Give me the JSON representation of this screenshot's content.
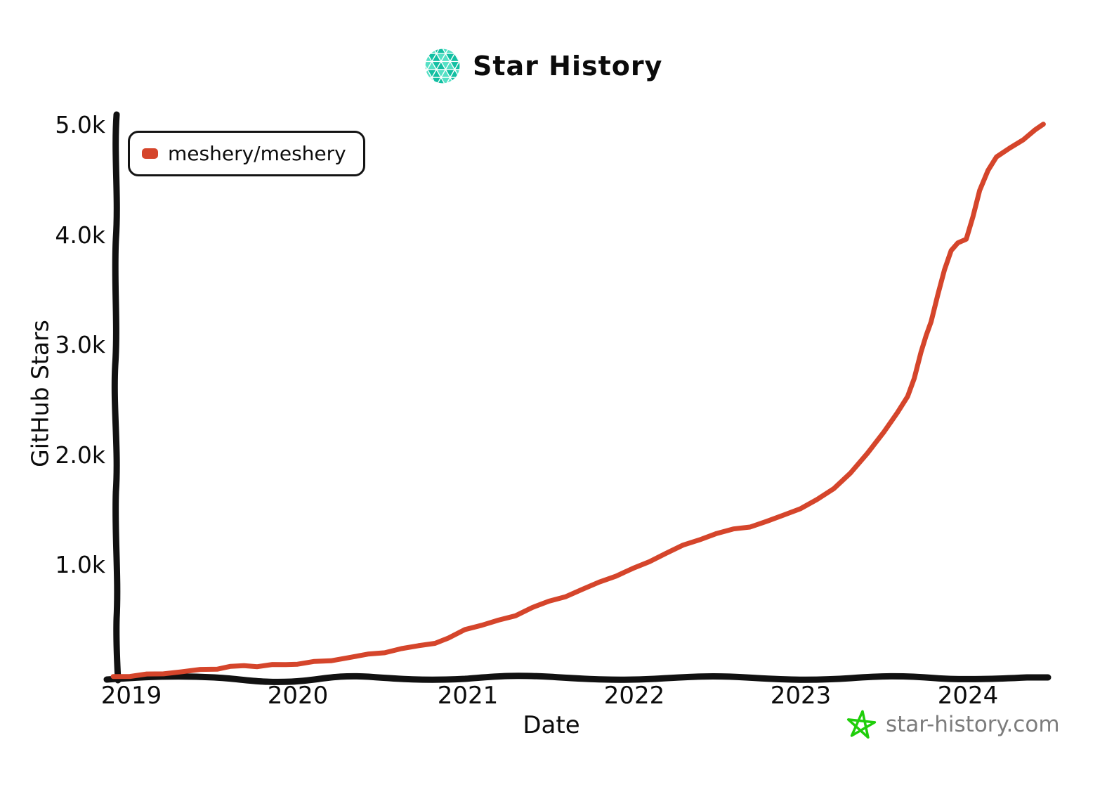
{
  "header": {
    "title": "Star History",
    "logo_colors": {
      "dark": "#12bfa2",
      "light": "#55e0c5"
    }
  },
  "legend": {
    "series_label": "meshery/meshery",
    "marker_color": "#d5452b"
  },
  "axes": {
    "y_title": "GitHub Stars",
    "x_title": "Date",
    "y_ticks": [
      "5.0k",
      "4.0k",
      "3.0k",
      "2.0k",
      "1.0k"
    ],
    "x_ticks": [
      "2019",
      "2020",
      "2021",
      "2022",
      "2023",
      "2024"
    ]
  },
  "footer": {
    "site": "star-history.com",
    "star_color": "#1fce0a",
    "text_color": "#7c7c7c"
  },
  "chart_data": {
    "type": "line",
    "title": "Star History",
    "xlabel": "Date",
    "ylabel": "GitHub Stars",
    "x_range": [
      2019,
      2024.5
    ],
    "y_range": [
      0,
      5000
    ],
    "x_tick_labels": [
      "2019",
      "2020",
      "2021",
      "2022",
      "2023",
      "2024"
    ],
    "y_tick_labels": [
      "1.0k",
      "2.0k",
      "3.0k",
      "4.0k",
      "5.0k"
    ],
    "grid": false,
    "legend_position": "top-left",
    "series": [
      {
        "name": "meshery/meshery",
        "color": "#d5452b",
        "points": [
          [
            2018.9,
            2
          ],
          [
            2019.0,
            8
          ],
          [
            2019.1,
            18
          ],
          [
            2019.2,
            30
          ],
          [
            2019.3,
            45
          ],
          [
            2019.42,
            60
          ],
          [
            2019.52,
            75
          ],
          [
            2019.6,
            92
          ],
          [
            2019.68,
            97
          ],
          [
            2019.76,
            98
          ],
          [
            2019.85,
            105
          ],
          [
            2019.93,
            112
          ],
          [
            2020.0,
            118
          ],
          [
            2020.1,
            132
          ],
          [
            2020.2,
            150
          ],
          [
            2020.3,
            172
          ],
          [
            2020.42,
            200
          ],
          [
            2020.52,
            225
          ],
          [
            2020.62,
            252
          ],
          [
            2020.72,
            280
          ],
          [
            2020.82,
            310
          ],
          [
            2020.9,
            345
          ],
          [
            2021.0,
            432
          ],
          [
            2021.1,
            472
          ],
          [
            2021.2,
            508
          ],
          [
            2021.3,
            560
          ],
          [
            2021.4,
            628
          ],
          [
            2021.5,
            682
          ],
          [
            2021.6,
            735
          ],
          [
            2021.7,
            790
          ],
          [
            2021.8,
            860
          ],
          [
            2021.9,
            920
          ],
          [
            2022.0,
            978
          ],
          [
            2022.1,
            1050
          ],
          [
            2022.2,
            1125
          ],
          [
            2022.3,
            1190
          ],
          [
            2022.4,
            1252
          ],
          [
            2022.5,
            1300
          ],
          [
            2022.6,
            1340
          ],
          [
            2022.7,
            1368
          ],
          [
            2022.8,
            1408
          ],
          [
            2022.9,
            1470
          ],
          [
            2023.0,
            1532
          ],
          [
            2023.1,
            1605
          ],
          [
            2023.2,
            1715
          ],
          [
            2023.3,
            1855
          ],
          [
            2023.4,
            2025
          ],
          [
            2023.5,
            2235
          ],
          [
            2023.58,
            2400
          ],
          [
            2023.64,
            2545
          ],
          [
            2023.68,
            2720
          ],
          [
            2023.72,
            2945
          ],
          [
            2023.75,
            3100
          ],
          [
            2023.78,
            3230
          ],
          [
            2023.82,
            3465
          ],
          [
            2023.86,
            3705
          ],
          [
            2023.9,
            3875
          ],
          [
            2023.94,
            3940
          ],
          [
            2023.99,
            3985
          ],
          [
            2024.03,
            4180
          ],
          [
            2024.07,
            4420
          ],
          [
            2024.12,
            4610
          ],
          [
            2024.17,
            4720
          ],
          [
            2024.25,
            4810
          ],
          [
            2024.33,
            4885
          ],
          [
            2024.4,
            4965
          ],
          [
            2024.45,
            5030
          ]
        ]
      }
    ]
  }
}
